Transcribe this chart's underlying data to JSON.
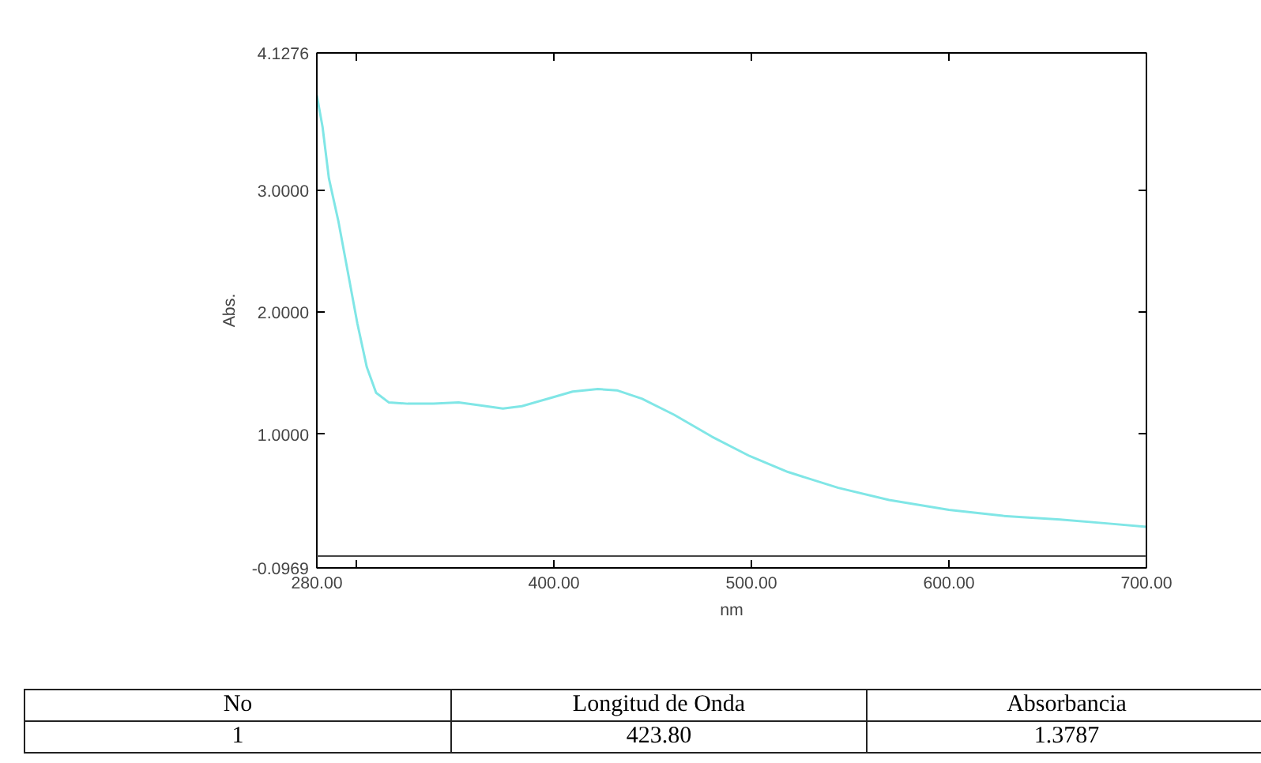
{
  "chart_data": {
    "type": "line",
    "xlabel": "nm",
    "ylabel": "Abs.",
    "x": [
      280,
      282.9,
      286.1,
      291,
      295.7,
      300.5,
      305.3,
      310,
      316.5,
      326,
      339,
      351.8,
      361.4,
      374.2,
      383.8,
      396.7,
      409.5,
      422.3,
      431.9,
      444.7,
      460.8,
      480,
      499.2,
      518.5,
      544,
      569.7,
      600,
      627.4,
      656.3,
      678.7,
      700
    ],
    "series": [
      {
        "color": "#80e6e6",
        "values": [
          3.78,
          3.52,
          3.1,
          2.74,
          2.33,
          1.91,
          1.55,
          1.34,
          1.26,
          1.25,
          1.25,
          1.26,
          1.24,
          1.21,
          1.23,
          1.29,
          1.35,
          1.37,
          1.36,
          1.29,
          1.16,
          0.98,
          0.82,
          0.69,
          0.56,
          0.46,
          0.38,
          0.33,
          0.3,
          0.27,
          0.24
        ]
      }
    ],
    "xlim": [
      280,
      700
    ],
    "xticks": [
      {
        "value": 280,
        "label": "280.00"
      },
      {
        "value": 300,
        "label": null
      },
      {
        "value": 400,
        "label": "400.00"
      },
      {
        "value": 500,
        "label": "500.00"
      },
      {
        "value": 600,
        "label": "600.00"
      },
      {
        "value": 700,
        "label": "700.00"
      }
    ],
    "ylim": [
      -0.0969,
      4.1276
    ],
    "yticks": [
      {
        "value": -0.0969,
        "label": "-0.0969"
      },
      {
        "value": 1,
        "label": "1.0000"
      },
      {
        "value": 2,
        "label": "2.0000"
      },
      {
        "value": 3,
        "label": "3.0000"
      },
      {
        "value": 4.1276,
        "label": "4.1276"
      }
    ],
    "ref_lines": [
      {
        "axis": "y",
        "value": 0,
        "color": "#444444"
      }
    ],
    "grid": false,
    "annotations": [
      "No",
      "Longitud de Onda",
      "Absorbancia",
      "1",
      "423.80",
      "1.3787"
    ]
  }
}
